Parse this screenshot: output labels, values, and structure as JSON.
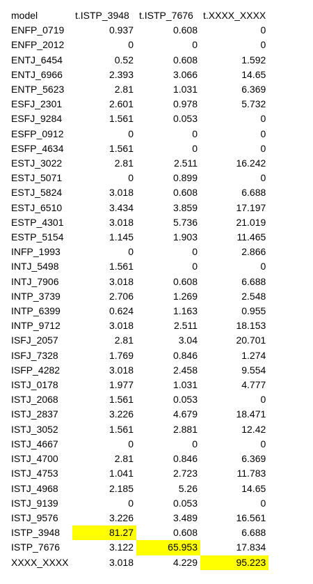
{
  "table": {
    "headers": [
      "model",
      "t.ISTP_3948",
      "t.ISTP_7676",
      "t.XXXX_XXXX"
    ],
    "highlight_color": "#ffff00",
    "rows": [
      {
        "model": "ENFP_0719",
        "a": "0.937",
        "b": "0.608",
        "c": "0"
      },
      {
        "model": "ENFP_2012",
        "a": "0",
        "b": "0",
        "c": "0"
      },
      {
        "model": "ENTJ_6454",
        "a": "0.52",
        "b": "0.608",
        "c": "1.592"
      },
      {
        "model": "ENTJ_6966",
        "a": "2.393",
        "b": "3.066",
        "c": "14.65"
      },
      {
        "model": "ENTP_5623",
        "a": "2.81",
        "b": "1.031",
        "c": "6.369"
      },
      {
        "model": "ESFJ_2301",
        "a": "2.601",
        "b": "0.978",
        "c": "5.732"
      },
      {
        "model": "ESFJ_9284",
        "a": "1.561",
        "b": "0.053",
        "c": "0"
      },
      {
        "model": "ESFP_0912",
        "a": "0",
        "b": "0",
        "c": "0"
      },
      {
        "model": "ESFP_4634",
        "a": "1.561",
        "b": "0",
        "c": "0"
      },
      {
        "model": "ESTJ_3022",
        "a": "2.81",
        "b": "2.511",
        "c": "16.242"
      },
      {
        "model": "ESTJ_5071",
        "a": "0",
        "b": "0.899",
        "c": "0"
      },
      {
        "model": "ESTJ_5824",
        "a": "3.018",
        "b": "0.608",
        "c": "6.688"
      },
      {
        "model": "ESTJ_6510",
        "a": "3.434",
        "b": "3.859",
        "c": "17.197"
      },
      {
        "model": "ESTP_4301",
        "a": "3.018",
        "b": "5.736",
        "c": "21.019"
      },
      {
        "model": "ESTP_5154",
        "a": "1.145",
        "b": "1.903",
        "c": "11.465"
      },
      {
        "model": "INFP_1993",
        "a": "0",
        "b": "0",
        "c": "2.866"
      },
      {
        "model": "INTJ_5498",
        "a": "1.561",
        "b": "0",
        "c": "0"
      },
      {
        "model": "INTJ_7906",
        "a": "3.018",
        "b": "0.608",
        "c": "6.688"
      },
      {
        "model": "INTP_3739",
        "a": "2.706",
        "b": "1.269",
        "c": "2.548"
      },
      {
        "model": "INTP_6399",
        "a": "0.624",
        "b": "1.163",
        "c": "0.955"
      },
      {
        "model": "INTP_9712",
        "a": "3.018",
        "b": "2.511",
        "c": "18.153"
      },
      {
        "model": "ISFJ_2057",
        "a": "2.81",
        "b": "3.04",
        "c": "20.701"
      },
      {
        "model": "ISFJ_7328",
        "a": "1.769",
        "b": "0.846",
        "c": "1.274"
      },
      {
        "model": "ISFP_4282",
        "a": "3.018",
        "b": "2.458",
        "c": "9.554"
      },
      {
        "model": "ISTJ_0178",
        "a": "1.977",
        "b": "1.031",
        "c": "4.777"
      },
      {
        "model": "ISTJ_2068",
        "a": "1.561",
        "b": "0.053",
        "c": "0"
      },
      {
        "model": "ISTJ_2837",
        "a": "3.226",
        "b": "4.679",
        "c": "18.471"
      },
      {
        "model": "ISTJ_3052",
        "a": "1.561",
        "b": "2.881",
        "c": "12.42"
      },
      {
        "model": "ISTJ_4667",
        "a": "0",
        "b": "0",
        "c": "0"
      },
      {
        "model": "ISTJ_4700",
        "a": "2.81",
        "b": "0.846",
        "c": "6.369"
      },
      {
        "model": "ISTJ_4753",
        "a": "1.041",
        "b": "2.723",
        "c": "11.783"
      },
      {
        "model": "ISTJ_4968",
        "a": "2.185",
        "b": "5.26",
        "c": "14.65"
      },
      {
        "model": "ISTJ_9139",
        "a": "0",
        "b": "0.053",
        "c": "0"
      },
      {
        "model": "ISTJ_9576",
        "a": "3.226",
        "b": "3.489",
        "c": "16.561"
      },
      {
        "model": "ISTP_3948",
        "a": "81.27",
        "b": "0.608",
        "c": "6.688",
        "highlight": "a"
      },
      {
        "model": "ISTP_7676",
        "a": "3.122",
        "b": "65.953",
        "c": "17.834",
        "highlight": "b"
      },
      {
        "model": "XXXX_XXXX",
        "a": "3.018",
        "b": "4.229",
        "c": "95.223",
        "highlight": "c"
      }
    ]
  }
}
